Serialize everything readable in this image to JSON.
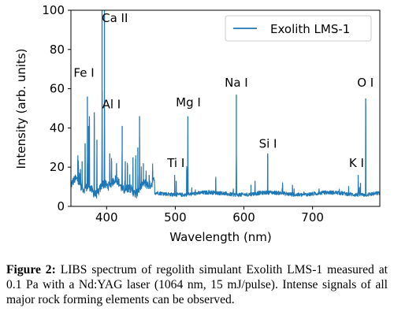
{
  "chart_data": {
    "type": "line",
    "xlabel": "Wavelength (nm)",
    "ylabel": "Intensity (arb. units)",
    "xlim": [
      348,
      798
    ],
    "ylim": [
      0,
      100
    ],
    "xticks": [
      400,
      500,
      600,
      700
    ],
    "yticks": [
      0,
      20,
      40,
      60,
      80,
      100
    ],
    "grid": false,
    "legend_position": "top-right",
    "series": [
      {
        "name": "Exolith LMS-1",
        "color": "#1f77b4",
        "peaks": [
          {
            "x": 358.1,
            "y": 24
          },
          {
            "x": 358.9,
            "y": 21
          },
          {
            "x": 361.9,
            "y": 19
          },
          {
            "x": 364.3,
            "y": 23
          },
          {
            "x": 368.7,
            "y": 32
          },
          {
            "x": 371.99,
            "y": 56
          },
          {
            "x": 373.7,
            "y": 41
          },
          {
            "x": 374.9,
            "y": 46
          },
          {
            "x": 382.0,
            "y": 48
          },
          {
            "x": 385.9,
            "y": 34
          },
          {
            "x": 393.37,
            "y": 100
          },
          {
            "x": 396.85,
            "y": 100
          },
          {
            "x": 404.6,
            "y": 27
          },
          {
            "x": 407.2,
            "y": 23
          },
          {
            "x": 414.4,
            "y": 22
          },
          {
            "x": 422.67,
            "y": 41
          },
          {
            "x": 427.2,
            "y": 23
          },
          {
            "x": 430.3,
            "y": 21
          },
          {
            "x": 438.4,
            "y": 25
          },
          {
            "x": 442.5,
            "y": 24
          },
          {
            "x": 445.5,
            "y": 30
          },
          {
            "x": 448.0,
            "y": 46
          },
          {
            "x": 453.5,
            "y": 22
          },
          {
            "x": 457.5,
            "y": 16
          },
          {
            "x": 462.0,
            "y": 16
          },
          {
            "x": 467.0,
            "y": 18
          },
          {
            "x": 499.1,
            "y": 16
          },
          {
            "x": 501.4,
            "y": 13
          },
          {
            "x": 516.73,
            "y": 19
          },
          {
            "x": 518.36,
            "y": 46
          },
          {
            "x": 559.0,
            "y": 14
          },
          {
            "x": 588.99,
            "y": 57
          },
          {
            "x": 610.3,
            "y": 11
          },
          {
            "x": 616.2,
            "y": 13
          },
          {
            "x": 634.71,
            "y": 27
          },
          {
            "x": 656.3,
            "y": 11
          },
          {
            "x": 670.8,
            "y": 11
          },
          {
            "x": 766.49,
            "y": 16
          },
          {
            "x": 769.9,
            "y": 12
          },
          {
            "x": 777.4,
            "y": 55
          }
        ]
      }
    ],
    "annotations": [
      {
        "text": "Ca II",
        "x": 412,
        "y": 94
      },
      {
        "text": "Fe I",
        "x": 367,
        "y": 66
      },
      {
        "text": "Al I",
        "x": 407,
        "y": 50
      },
      {
        "text": "Mg I",
        "x": 519,
        "y": 51
      },
      {
        "text": "Na I",
        "x": 589,
        "y": 61
      },
      {
        "text": "Si I",
        "x": 635,
        "y": 30
      },
      {
        "text": "Ti I",
        "x": 501,
        "y": 20
      },
      {
        "text": "K I",
        "x": 764,
        "y": 20
      },
      {
        "text": "O I",
        "x": 777,
        "y": 61
      }
    ]
  },
  "caption": {
    "label": "Figure 2:",
    "text": "LIBS spectrum of regolith simulant Exolith LMS-1 measured at 0.1 Pa with a Nd:YAG laser (1064 nm, 15 mJ/pulse). Intense signals of all major rock forming elements can be observed."
  }
}
